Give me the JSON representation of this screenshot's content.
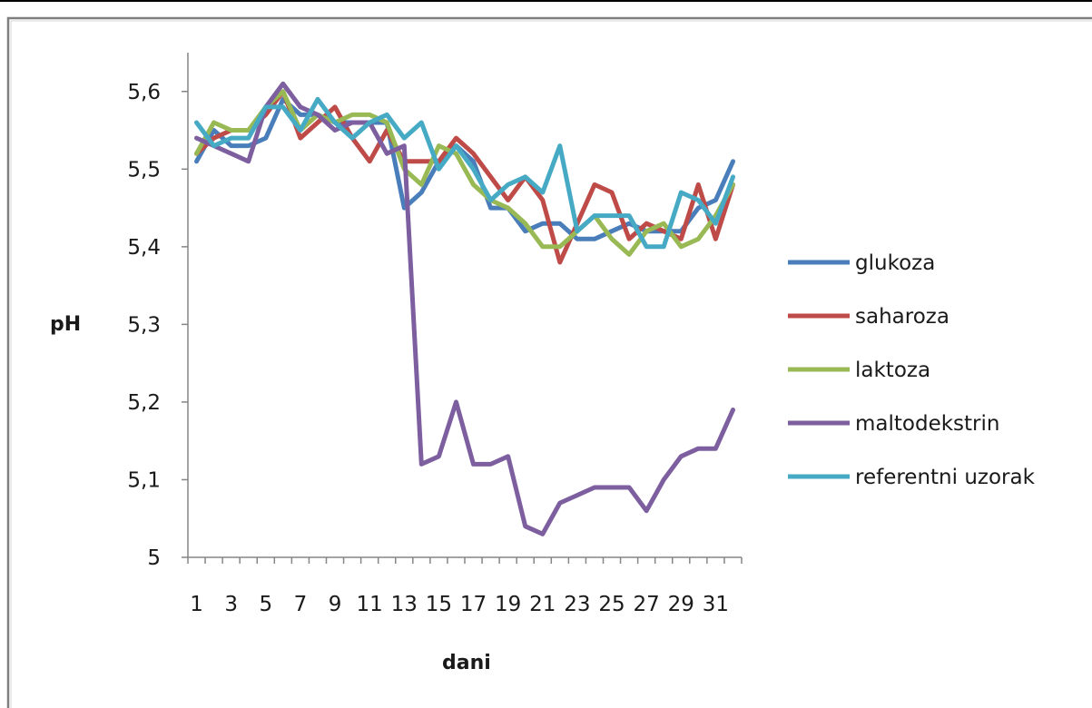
{
  "chart_data": {
    "type": "line",
    "title": "",
    "xlabel": "dani",
    "ylabel": "pH",
    "x": [
      1,
      2,
      3,
      4,
      5,
      6,
      7,
      8,
      9,
      10,
      11,
      12,
      13,
      14,
      15,
      16,
      17,
      18,
      19,
      20,
      21,
      22,
      23,
      24,
      25,
      26,
      27,
      28,
      29,
      30,
      31,
      32
    ],
    "x_tick_labels": [
      "1",
      "3",
      "5",
      "7",
      "9",
      "11",
      "13",
      "15",
      "17",
      "19",
      "21",
      "23",
      "25",
      "27",
      "29",
      "31"
    ],
    "y_tick_labels": [
      "5",
      "5,1",
      "5,2",
      "5,3",
      "5,4",
      "5,5",
      "5,6"
    ],
    "ylim": [
      5,
      5.65
    ],
    "grid": false,
    "legend_position": "right",
    "series": [
      {
        "name": "glukoza",
        "color": "#4a7ebb",
        "values": [
          5.51,
          5.55,
          5.53,
          5.53,
          5.54,
          5.59,
          5.57,
          5.57,
          5.56,
          5.56,
          5.56,
          5.56,
          5.45,
          5.47,
          5.51,
          5.53,
          5.51,
          5.45,
          5.45,
          5.42,
          5.43,
          5.43,
          5.41,
          5.41,
          5.42,
          5.43,
          5.42,
          5.42,
          5.42,
          5.45,
          5.46,
          5.51
        ]
      },
      {
        "name": "saharoza",
        "color": "#be4b48",
        "values": [
          5.52,
          5.54,
          5.55,
          5.55,
          5.57,
          5.6,
          5.54,
          5.56,
          5.58,
          5.54,
          5.51,
          5.55,
          5.51,
          5.51,
          5.51,
          5.54,
          5.52,
          5.49,
          5.46,
          5.49,
          5.46,
          5.38,
          5.43,
          5.48,
          5.47,
          5.41,
          5.43,
          5.42,
          5.41,
          5.48,
          5.41,
          5.48
        ]
      },
      {
        "name": "laktoza",
        "color": "#98b954",
        "values": [
          5.52,
          5.56,
          5.55,
          5.55,
          5.58,
          5.6,
          5.55,
          5.57,
          5.56,
          5.57,
          5.57,
          5.56,
          5.5,
          5.48,
          5.53,
          5.52,
          5.48,
          5.46,
          5.45,
          5.43,
          5.4,
          5.4,
          5.42,
          5.44,
          5.41,
          5.39,
          5.42,
          5.43,
          5.4,
          5.41,
          5.44,
          5.48
        ]
      },
      {
        "name": "maltodekstrin",
        "color": "#7d5fa0",
        "values": [
          5.54,
          5.53,
          5.52,
          5.51,
          5.58,
          5.61,
          5.58,
          5.57,
          5.55,
          5.56,
          5.56,
          5.52,
          5.53,
          5.12,
          5.13,
          5.2,
          5.12,
          5.12,
          5.13,
          5.04,
          5.03,
          5.07,
          5.08,
          5.09,
          5.09,
          5.09,
          5.06,
          5.1,
          5.13,
          5.14,
          5.14,
          5.19
        ]
      },
      {
        "name": "referentni uzorak",
        "color": "#46aac5",
        "values": [
          5.56,
          5.53,
          5.54,
          5.54,
          5.58,
          5.58,
          5.55,
          5.59,
          5.56,
          5.54,
          5.56,
          5.57,
          5.54,
          5.56,
          5.5,
          5.53,
          5.5,
          5.46,
          5.48,
          5.49,
          5.47,
          5.53,
          5.42,
          5.44,
          5.44,
          5.44,
          5.4,
          5.4,
          5.47,
          5.46,
          5.43,
          5.49
        ]
      }
    ]
  }
}
